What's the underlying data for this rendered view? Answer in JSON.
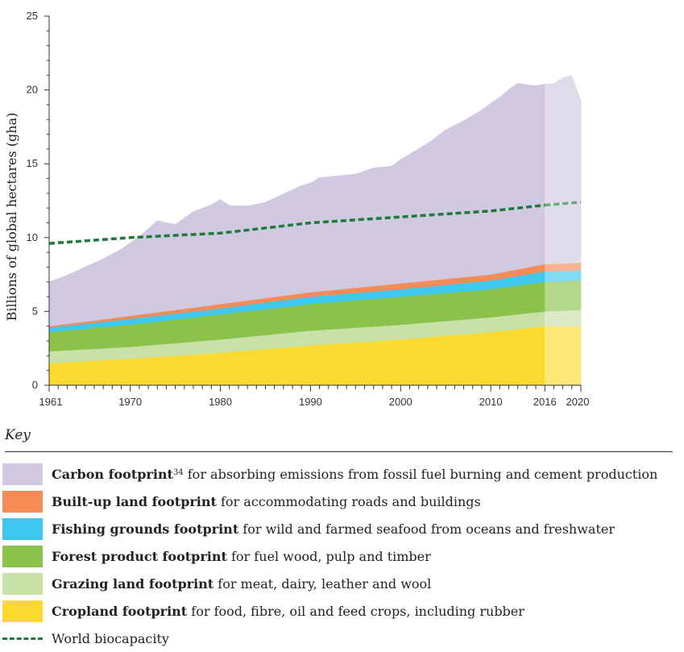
{
  "chart_data": {
    "type": "area",
    "stacked": true,
    "ylabel": "Billions of global hectares (gha)",
    "yticks": [
      0,
      5,
      10,
      15,
      20,
      25
    ],
    "ylim": [
      0,
      25
    ],
    "xlim": [
      1961,
      2020
    ],
    "xtick_labels": [
      "1961",
      "1970",
      "1980",
      "1990",
      "2000",
      "2010",
      "2016",
      "2020"
    ],
    "xtick_values": [
      1961,
      1970,
      1980,
      1990,
      2000,
      2010,
      2016,
      2020
    ],
    "projection_start": 2016,
    "colors": {
      "cropland": "#fbda30",
      "grazing": "#c7e1a7",
      "forest": "#8bc34a",
      "fishing": "#3ec8ef",
      "builtup": "#f58b57",
      "carbon": "#d1c9e1",
      "biocapacity": "#1c7a3a",
      "axis": "#333333"
    },
    "series": [
      {
        "key": "cropland",
        "name": "Cropland footprint",
        "color": "#fbda30",
        "points": [
          [
            1961,
            1.5
          ],
          [
            1970,
            1.8
          ],
          [
            1980,
            2.2
          ],
          [
            1990,
            2.7
          ],
          [
            2000,
            3.1
          ],
          [
            2010,
            3.6
          ],
          [
            2016,
            4.0
          ],
          [
            2020,
            4.0
          ]
        ]
      },
      {
        "key": "grazing",
        "name": "Grazing land footprint",
        "color": "#c7e1a7",
        "points": [
          [
            1961,
            0.8
          ],
          [
            1970,
            0.8
          ],
          [
            1980,
            0.9
          ],
          [
            1990,
            1.0
          ],
          [
            2000,
            1.0
          ],
          [
            2010,
            1.0
          ],
          [
            2016,
            1.0
          ],
          [
            2020,
            1.1
          ]
        ]
      },
      {
        "key": "forest",
        "name": "Forest product footprint",
        "color": "#8bc34a",
        "points": [
          [
            1961,
            1.3
          ],
          [
            1970,
            1.5
          ],
          [
            1980,
            1.7
          ],
          [
            1990,
            1.8
          ],
          [
            2000,
            1.9
          ],
          [
            2010,
            1.9
          ],
          [
            2016,
            2.0
          ],
          [
            2020,
            2.0
          ]
        ]
      },
      {
        "key": "fishing",
        "name": "Fishing grounds footprint",
        "color": "#3ec8ef",
        "points": [
          [
            1961,
            0.3
          ],
          [
            1970,
            0.4
          ],
          [
            1980,
            0.4
          ],
          [
            1990,
            0.5
          ],
          [
            2000,
            0.5
          ],
          [
            2010,
            0.6
          ],
          [
            2016,
            0.7
          ],
          [
            2020,
            0.7
          ]
        ]
      },
      {
        "key": "builtup",
        "name": "Built-up land footprint",
        "color": "#f58b57",
        "points": [
          [
            1961,
            0.1
          ],
          [
            1970,
            0.2
          ],
          [
            1980,
            0.3
          ],
          [
            1990,
            0.3
          ],
          [
            2000,
            0.4
          ],
          [
            2010,
            0.4
          ],
          [
            2016,
            0.5
          ],
          [
            2020,
            0.5
          ]
        ]
      },
      {
        "key": "carbon",
        "name": "Carbon footprint",
        "color": "#d1c9e1",
        "points": [
          [
            1961,
            3.0
          ],
          [
            1963,
            3.3
          ],
          [
            1965,
            3.7
          ],
          [
            1967,
            4.1
          ],
          [
            1969,
            4.6
          ],
          [
            1971,
            5.3
          ],
          [
            1973,
            6.2
          ],
          [
            1975,
            5.8
          ],
          [
            1977,
            6.5
          ],
          [
            1979,
            6.8
          ],
          [
            1980,
            7.1
          ],
          [
            1981,
            6.6
          ],
          [
            1983,
            6.4
          ],
          [
            1985,
            6.5
          ],
          [
            1987,
            6.9
          ],
          [
            1989,
            7.3
          ],
          [
            1990,
            7.4
          ],
          [
            1991,
            7.7
          ],
          [
            1993,
            7.7
          ],
          [
            1995,
            7.7
          ],
          [
            1997,
            8.0
          ],
          [
            1999,
            8.0
          ],
          [
            2000,
            8.4
          ],
          [
            2002,
            9.0
          ],
          [
            2003,
            9.3
          ],
          [
            2005,
            10.1
          ],
          [
            2007,
            10.6
          ],
          [
            2009,
            11.2
          ],
          [
            2010,
            11.6
          ],
          [
            2011,
            11.9
          ],
          [
            2012,
            12.3
          ],
          [
            2013,
            12.6
          ],
          [
            2015,
            12.2
          ],
          [
            2016,
            12.2
          ],
          [
            2017,
            12.2
          ],
          [
            2018,
            12.6
          ],
          [
            2019,
            12.7
          ],
          [
            2020,
            11.0
          ]
        ]
      }
    ],
    "biocapacity": {
      "name": "World biocapacity",
      "points": [
        [
          1961,
          9.6
        ],
        [
          1970,
          10.0
        ],
        [
          1980,
          10.3
        ],
        [
          1990,
          11.0
        ],
        [
          2000,
          11.4
        ],
        [
          2010,
          11.8
        ],
        [
          2016,
          12.2
        ],
        [
          2020,
          12.4
        ]
      ]
    }
  },
  "legend": {
    "title": "Key",
    "items": [
      {
        "color": "#d1c9e1",
        "bold": "Carbon footprint",
        "sup": "34",
        "rest": " for absorbing emissions from fossil fuel burning and cement production"
      },
      {
        "color": "#f58b57",
        "bold": "Built-up land footprint",
        "sup": "",
        "rest": " for accommodating roads and buildings"
      },
      {
        "color": "#3ec8ef",
        "bold": "Fishing grounds footprint",
        "sup": "",
        "rest": " for wild and farmed seafood from oceans and freshwater"
      },
      {
        "color": "#8bc34a",
        "bold": "Forest product footprint",
        "sup": "",
        "rest": " for fuel wood, pulp and timber"
      },
      {
        "color": "#c7e1a7",
        "bold": "Grazing land footprint",
        "sup": "",
        "rest": " for meat, dairy, leather and wool"
      },
      {
        "color": "#fbda30",
        "bold": "Cropland footprint",
        "sup": "",
        "rest": " for food, fibre, oil and feed crops, including rubber"
      }
    ],
    "biocapacity_label": "World biocapacity"
  }
}
